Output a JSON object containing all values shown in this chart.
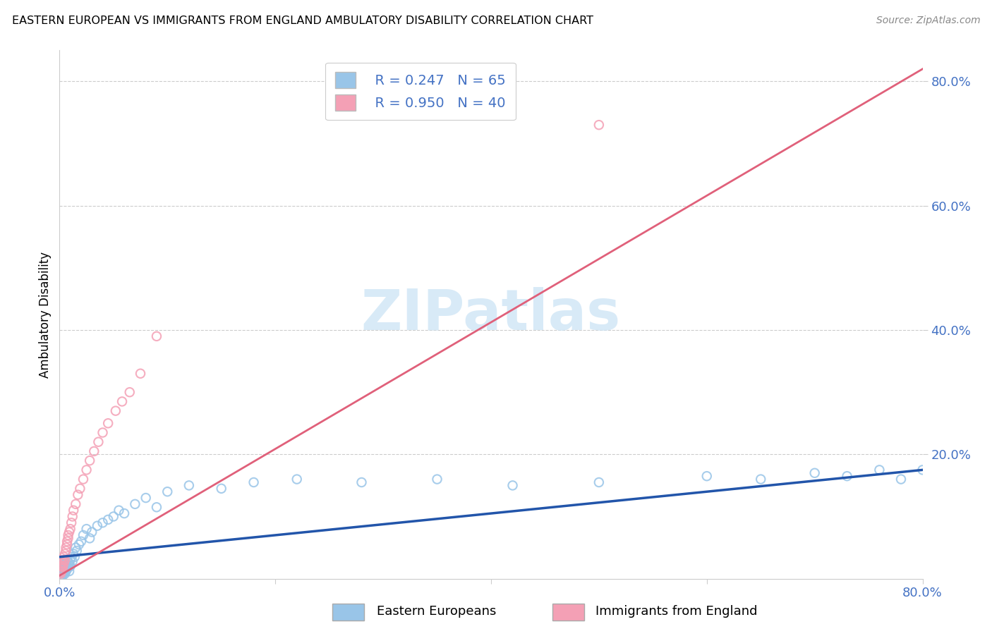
{
  "title": "EASTERN EUROPEAN VS IMMIGRANTS FROM ENGLAND AMBULATORY DISABILITY CORRELATION CHART",
  "source": "Source: ZipAtlas.com",
  "ylabel": "Ambulatory Disability",
  "xlim": [
    0.0,
    0.8
  ],
  "ylim": [
    0.0,
    0.85
  ],
  "xticks": [
    0.0,
    0.2,
    0.4,
    0.6,
    0.8
  ],
  "yticks": [
    0.2,
    0.4,
    0.6,
    0.8
  ],
  "xticklabels": [
    "0.0%",
    "",
    "",
    "",
    "80.0%"
  ],
  "yticklabels": [
    "20.0%",
    "40.0%",
    "60.0%",
    "80.0%"
  ],
  "blue_R": 0.247,
  "blue_N": 65,
  "pink_R": 0.95,
  "pink_N": 40,
  "blue_color": "#99c5e8",
  "pink_color": "#f4a0b5",
  "blue_line_color": "#2255aa",
  "pink_line_color": "#e0607a",
  "legend_label_blue": "Eastern Europeans",
  "legend_label_pink": "Immigrants from England",
  "blue_scatter_x": [
    0.001,
    0.001,
    0.001,
    0.002,
    0.002,
    0.002,
    0.002,
    0.003,
    0.003,
    0.003,
    0.003,
    0.004,
    0.004,
    0.004,
    0.005,
    0.005,
    0.005,
    0.006,
    0.006,
    0.006,
    0.007,
    0.007,
    0.008,
    0.008,
    0.009,
    0.009,
    0.01,
    0.01,
    0.011,
    0.012,
    0.013,
    0.014,
    0.015,
    0.016,
    0.018,
    0.02,
    0.022,
    0.025,
    0.028,
    0.03,
    0.035,
    0.04,
    0.045,
    0.05,
    0.055,
    0.06,
    0.07,
    0.08,
    0.09,
    0.1,
    0.12,
    0.15,
    0.18,
    0.22,
    0.28,
    0.35,
    0.42,
    0.5,
    0.6,
    0.65,
    0.7,
    0.73,
    0.76,
    0.78,
    0.8
  ],
  "blue_scatter_y": [
    0.01,
    0.015,
    0.005,
    0.012,
    0.008,
    0.02,
    0.005,
    0.015,
    0.01,
    0.025,
    0.005,
    0.018,
    0.01,
    0.022,
    0.015,
    0.008,
    0.03,
    0.02,
    0.012,
    0.025,
    0.015,
    0.03,
    0.022,
    0.018,
    0.025,
    0.012,
    0.02,
    0.03,
    0.035,
    0.028,
    0.04,
    0.035,
    0.05,
    0.045,
    0.055,
    0.06,
    0.07,
    0.08,
    0.065,
    0.075,
    0.085,
    0.09,
    0.095,
    0.1,
    0.11,
    0.105,
    0.12,
    0.13,
    0.115,
    0.14,
    0.15,
    0.145,
    0.155,
    0.16,
    0.155,
    0.16,
    0.15,
    0.155,
    0.165,
    0.16,
    0.17,
    0.165,
    0.175,
    0.16,
    0.175
  ],
  "pink_scatter_x": [
    0.001,
    0.001,
    0.001,
    0.002,
    0.002,
    0.002,
    0.003,
    0.003,
    0.003,
    0.004,
    0.004,
    0.005,
    0.005,
    0.006,
    0.006,
    0.007,
    0.007,
    0.008,
    0.008,
    0.009,
    0.01,
    0.011,
    0.012,
    0.013,
    0.015,
    0.017,
    0.019,
    0.022,
    0.025,
    0.028,
    0.032,
    0.036,
    0.04,
    0.045,
    0.052,
    0.058,
    0.065,
    0.075,
    0.09,
    0.5
  ],
  "pink_scatter_y": [
    0.01,
    0.02,
    0.008,
    0.015,
    0.025,
    0.012,
    0.02,
    0.03,
    0.018,
    0.025,
    0.035,
    0.03,
    0.04,
    0.05,
    0.045,
    0.06,
    0.055,
    0.07,
    0.065,
    0.075,
    0.08,
    0.09,
    0.1,
    0.11,
    0.12,
    0.135,
    0.145,
    0.16,
    0.175,
    0.19,
    0.205,
    0.22,
    0.235,
    0.25,
    0.27,
    0.285,
    0.3,
    0.33,
    0.39,
    0.73
  ],
  "blue_trend_x": [
    0.0,
    0.8
  ],
  "blue_trend_y": [
    0.035,
    0.175
  ],
  "pink_trend_x": [
    0.0,
    0.8
  ],
  "pink_trend_y": [
    0.005,
    0.82
  ]
}
